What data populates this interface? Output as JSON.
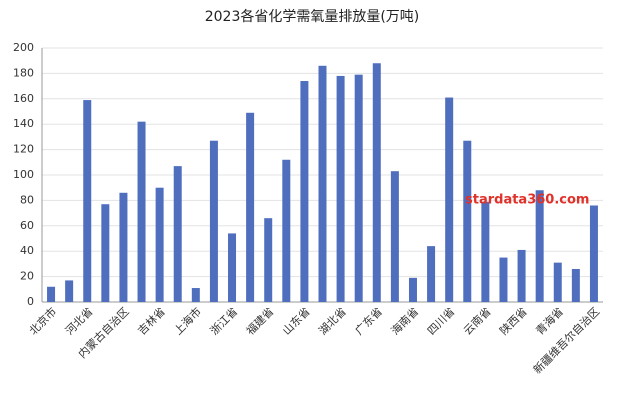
{
  "chart_data": {
    "type": "bar",
    "title": "2023各省化学需氧量排放量(万吨)",
    "categories": [
      "北京市",
      null,
      "河北省",
      null,
      "内蒙古自治区",
      null,
      "吉林省",
      null,
      "上海市",
      null,
      "浙江省",
      null,
      "福建省",
      null,
      "山东省",
      null,
      "湖北省",
      null,
      "广东省",
      null,
      "海南省",
      null,
      "四川省",
      null,
      "云南省",
      null,
      "陕西省",
      null,
      "青海省",
      null,
      "新疆维吾尔自治区"
    ],
    "values": [
      12,
      17,
      159,
      77,
      86,
      142,
      90,
      107,
      11,
      127,
      54,
      149,
      66,
      112,
      174,
      186,
      178,
      179,
      188,
      103,
      19,
      44,
      161,
      127,
      79,
      35,
      41,
      88,
      31,
      26,
      76
    ],
    "color": "#4f6fbe",
    "ylim": [
      0,
      200
    ],
    "yticks": [
      0,
      20,
      40,
      60,
      80,
      100,
      120,
      140,
      160,
      180,
      200
    ],
    "grid": true,
    "watermark": "stardata360.com"
  }
}
